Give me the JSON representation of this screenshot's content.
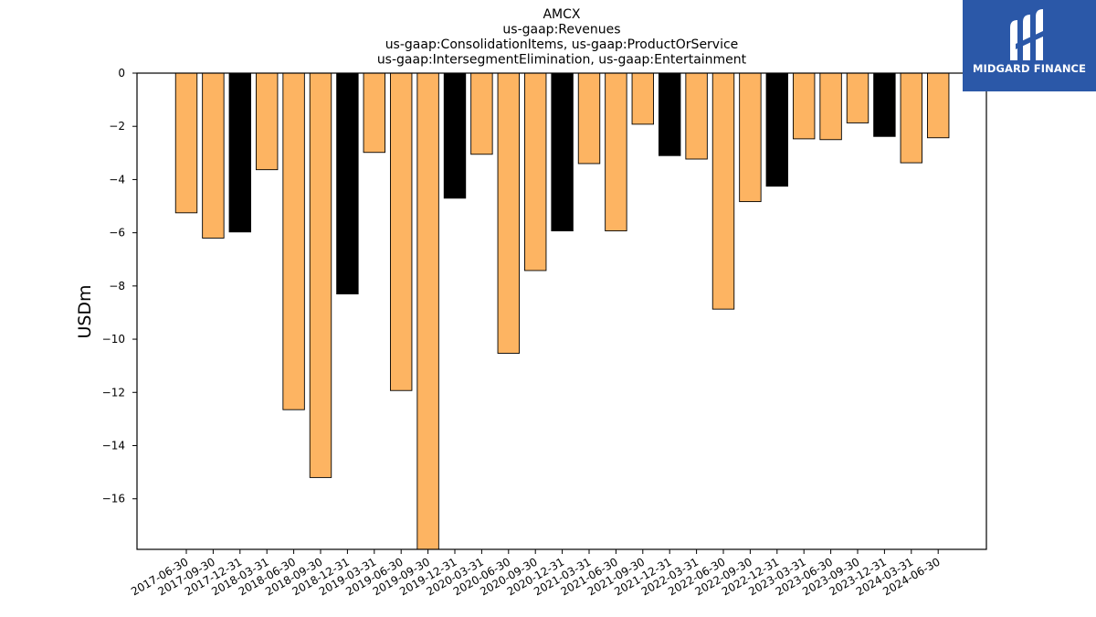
{
  "chart_data": {
    "type": "bar",
    "title_lines": [
      "AMCX",
      "us-gaap:Revenues",
      "us-gaap:ConsolidationItems, us-gaap:ProductOrService",
      "us-gaap:IntersegmentElimination, us-gaap:Entertainment"
    ],
    "xlabel": "",
    "ylabel": "USDm",
    "ylim": [
      -17.9,
      0
    ],
    "yticks": [
      0,
      -2,
      -4,
      -6,
      -8,
      -10,
      -12,
      -14,
      -16
    ],
    "categories": [
      "2017-06-30",
      "2017-09-30",
      "2017-12-31",
      "2018-03-31",
      "2018-06-30",
      "2018-09-30",
      "2018-12-31",
      "2019-03-31",
      "2019-06-30",
      "2019-09-30",
      "2019-12-31",
      "2020-03-31",
      "2020-06-30",
      "2020-09-30",
      "2020-12-31",
      "2021-03-31",
      "2021-06-30",
      "2021-09-30",
      "2021-12-31",
      "2022-03-31",
      "2022-06-30",
      "2022-09-30",
      "2022-12-31",
      "2023-03-31",
      "2023-06-30",
      "2023-09-30",
      "2023-12-31",
      "2024-03-31",
      "2024-06-30"
    ],
    "values": [
      -5.25,
      -6.2,
      -5.97,
      -3.63,
      -12.65,
      -15.2,
      -8.3,
      -2.98,
      -11.93,
      -17.9,
      -4.7,
      -3.05,
      -10.53,
      -7.42,
      -5.93,
      -3.4,
      -5.93,
      -1.92,
      -3.1,
      -3.23,
      -8.87,
      -4.83,
      -4.25,
      -2.47,
      -2.5,
      -1.87,
      -2.38,
      -3.37,
      -2.43
    ],
    "bar_colors": [
      "#fdb462",
      "#fdb462",
      "#000000",
      "#fdb462",
      "#fdb462",
      "#fdb462",
      "#000000",
      "#fdb462",
      "#fdb462",
      "#fdb462",
      "#000000",
      "#fdb462",
      "#fdb462",
      "#fdb462",
      "#000000",
      "#fdb462",
      "#fdb462",
      "#fdb462",
      "#000000",
      "#fdb462",
      "#fdb462",
      "#fdb462",
      "#000000",
      "#fdb462",
      "#fdb462",
      "#fdb462",
      "#000000",
      "#fdb462",
      "#fdb462"
    ],
    "grid": false
  },
  "logo": {
    "text": "MIDGARD FINANCE",
    "background": "#2b58a8"
  }
}
